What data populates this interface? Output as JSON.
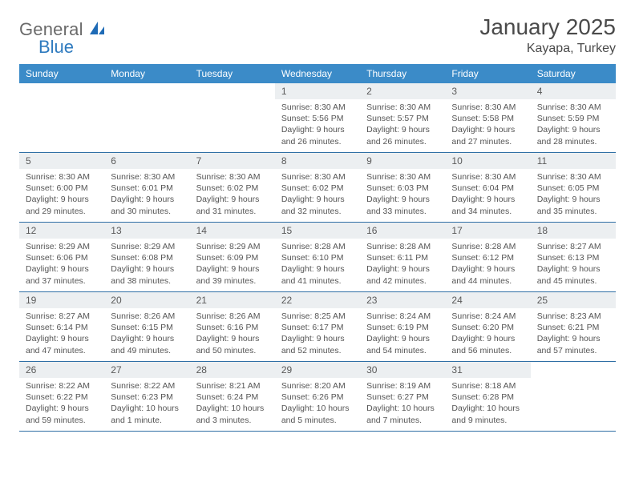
{
  "branding": {
    "word1": "General",
    "word2": "Blue",
    "mark_color": "#1f6bb6"
  },
  "title": "January 2025",
  "location": "Kayapa, Turkey",
  "colors": {
    "header_bg": "#3b8bc8",
    "header_text": "#ffffff",
    "daynum_bg": "#eceff1",
    "row_border": "#2f6fa5"
  },
  "weekdays": [
    "Sunday",
    "Monday",
    "Tuesday",
    "Wednesday",
    "Thursday",
    "Friday",
    "Saturday"
  ],
  "weeks": [
    [
      null,
      null,
      null,
      {
        "n": "1",
        "sr": "8:30 AM",
        "ss": "5:56 PM",
        "dl": "9 hours and 26 minutes."
      },
      {
        "n": "2",
        "sr": "8:30 AM",
        "ss": "5:57 PM",
        "dl": "9 hours and 26 minutes."
      },
      {
        "n": "3",
        "sr": "8:30 AM",
        "ss": "5:58 PM",
        "dl": "9 hours and 27 minutes."
      },
      {
        "n": "4",
        "sr": "8:30 AM",
        "ss": "5:59 PM",
        "dl": "9 hours and 28 minutes."
      }
    ],
    [
      {
        "n": "5",
        "sr": "8:30 AM",
        "ss": "6:00 PM",
        "dl": "9 hours and 29 minutes."
      },
      {
        "n": "6",
        "sr": "8:30 AM",
        "ss": "6:01 PM",
        "dl": "9 hours and 30 minutes."
      },
      {
        "n": "7",
        "sr": "8:30 AM",
        "ss": "6:02 PM",
        "dl": "9 hours and 31 minutes."
      },
      {
        "n": "8",
        "sr": "8:30 AM",
        "ss": "6:02 PM",
        "dl": "9 hours and 32 minutes."
      },
      {
        "n": "9",
        "sr": "8:30 AM",
        "ss": "6:03 PM",
        "dl": "9 hours and 33 minutes."
      },
      {
        "n": "10",
        "sr": "8:30 AM",
        "ss": "6:04 PM",
        "dl": "9 hours and 34 minutes."
      },
      {
        "n": "11",
        "sr": "8:30 AM",
        "ss": "6:05 PM",
        "dl": "9 hours and 35 minutes."
      }
    ],
    [
      {
        "n": "12",
        "sr": "8:29 AM",
        "ss": "6:06 PM",
        "dl": "9 hours and 37 minutes."
      },
      {
        "n": "13",
        "sr": "8:29 AM",
        "ss": "6:08 PM",
        "dl": "9 hours and 38 minutes."
      },
      {
        "n": "14",
        "sr": "8:29 AM",
        "ss": "6:09 PM",
        "dl": "9 hours and 39 minutes."
      },
      {
        "n": "15",
        "sr": "8:28 AM",
        "ss": "6:10 PM",
        "dl": "9 hours and 41 minutes."
      },
      {
        "n": "16",
        "sr": "8:28 AM",
        "ss": "6:11 PM",
        "dl": "9 hours and 42 minutes."
      },
      {
        "n": "17",
        "sr": "8:28 AM",
        "ss": "6:12 PM",
        "dl": "9 hours and 44 minutes."
      },
      {
        "n": "18",
        "sr": "8:27 AM",
        "ss": "6:13 PM",
        "dl": "9 hours and 45 minutes."
      }
    ],
    [
      {
        "n": "19",
        "sr": "8:27 AM",
        "ss": "6:14 PM",
        "dl": "9 hours and 47 minutes."
      },
      {
        "n": "20",
        "sr": "8:26 AM",
        "ss": "6:15 PM",
        "dl": "9 hours and 49 minutes."
      },
      {
        "n": "21",
        "sr": "8:26 AM",
        "ss": "6:16 PM",
        "dl": "9 hours and 50 minutes."
      },
      {
        "n": "22",
        "sr": "8:25 AM",
        "ss": "6:17 PM",
        "dl": "9 hours and 52 minutes."
      },
      {
        "n": "23",
        "sr": "8:24 AM",
        "ss": "6:19 PM",
        "dl": "9 hours and 54 minutes."
      },
      {
        "n": "24",
        "sr": "8:24 AM",
        "ss": "6:20 PM",
        "dl": "9 hours and 56 minutes."
      },
      {
        "n": "25",
        "sr": "8:23 AM",
        "ss": "6:21 PM",
        "dl": "9 hours and 57 minutes."
      }
    ],
    [
      {
        "n": "26",
        "sr": "8:22 AM",
        "ss": "6:22 PM",
        "dl": "9 hours and 59 minutes."
      },
      {
        "n": "27",
        "sr": "8:22 AM",
        "ss": "6:23 PM",
        "dl": "10 hours and 1 minute."
      },
      {
        "n": "28",
        "sr": "8:21 AM",
        "ss": "6:24 PM",
        "dl": "10 hours and 3 minutes."
      },
      {
        "n": "29",
        "sr": "8:20 AM",
        "ss": "6:26 PM",
        "dl": "10 hours and 5 minutes."
      },
      {
        "n": "30",
        "sr": "8:19 AM",
        "ss": "6:27 PM",
        "dl": "10 hours and 7 minutes."
      },
      {
        "n": "31",
        "sr": "8:18 AM",
        "ss": "6:28 PM",
        "dl": "10 hours and 9 minutes."
      },
      null
    ]
  ],
  "labels": {
    "sunrise": "Sunrise:",
    "sunset": "Sunset:",
    "daylight": "Daylight:"
  }
}
